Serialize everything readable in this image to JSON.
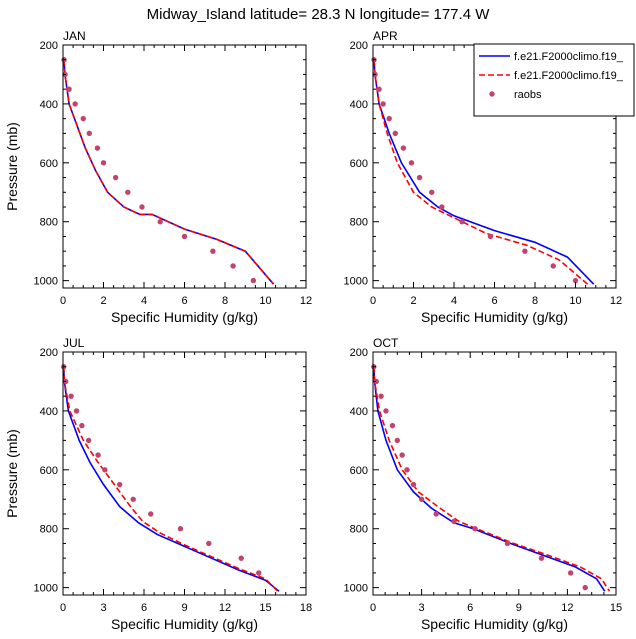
{
  "figure": {
    "title": "Midway_Island  latitude= 28.3 N longitude= 177.4 W"
  },
  "legend": {
    "entries": [
      {
        "label": "f.e21.F2000climo.f19_",
        "style": "solid",
        "color": "#0000ff"
      },
      {
        "label": "f.e21.F2000climo.f19_",
        "style": "dashed",
        "color": "#ff0000"
      },
      {
        "label": "raobs",
        "style": "marker",
        "color": "#c2436e"
      }
    ]
  },
  "chart_data": [
    {
      "type": "line",
      "panel": "JAN",
      "xlabel": "Specific Humidity (g/kg)",
      "ylabel": "Pressure (mb)",
      "xlim": [
        0,
        12
      ],
      "ylim": [
        200,
        1025
      ],
      "y_reversed": true,
      "xticks": [
        0,
        2,
        4,
        6,
        8,
        10,
        12
      ],
      "yticks": [
        200,
        400,
        600,
        800,
        1000
      ],
      "series": [
        {
          "name": "f.e21.F2000climo.f19_",
          "style": "solid",
          "x": [
            0.05,
            0.1,
            0.3,
            0.7,
            1.1,
            1.6,
            2.2,
            3.0,
            3.8,
            4.4,
            6.0,
            7.6,
            9.0,
            10.4
          ],
          "y": [
            250,
            300,
            400,
            475,
            550,
            625,
            700,
            750,
            775,
            775,
            825,
            860,
            900,
            1012
          ]
        },
        {
          "name": "f.e21.F2000climo.f19_",
          "style": "dashed",
          "x": [
            0.05,
            0.1,
            0.3,
            0.7,
            1.1,
            1.6,
            2.2,
            3.0,
            3.8,
            4.4,
            6.0,
            7.6,
            9.0,
            10.4
          ],
          "y": [
            250,
            300,
            400,
            475,
            550,
            625,
            700,
            750,
            775,
            775,
            825,
            860,
            900,
            1012
          ]
        },
        {
          "name": "raobs",
          "style": "marker",
          "x": [
            0.05,
            0.1,
            0.3,
            0.6,
            1.0,
            1.3,
            1.7,
            2.0,
            2.6,
            3.2,
            3.9,
            4.8,
            6.0,
            7.4,
            8.4,
            9.4
          ],
          "y": [
            250,
            300,
            350,
            400,
            450,
            500,
            550,
            600,
            650,
            700,
            750,
            800,
            850,
            900,
            950,
            1000
          ]
        }
      ]
    },
    {
      "type": "line",
      "panel": "APR",
      "xlabel": "Specific Humidity (g/kg)",
      "ylabel": "",
      "xlim": [
        0,
        12
      ],
      "ylim": [
        200,
        1025
      ],
      "y_reversed": true,
      "xticks": [
        0,
        2,
        4,
        6,
        8,
        10,
        12
      ],
      "yticks": [
        200,
        400,
        600,
        800,
        1000
      ],
      "series": [
        {
          "name": "f.e21.F2000climo.f19_",
          "style": "solid",
          "x": [
            0.05,
            0.1,
            0.3,
            0.8,
            1.4,
            2.3,
            3.2,
            4.0,
            6.0,
            8.0,
            9.6,
            10.9
          ],
          "y": [
            250,
            300,
            400,
            500,
            600,
            700,
            750,
            780,
            830,
            870,
            920,
            1012
          ]
        },
        {
          "name": "f.e21.F2000climo.f19_",
          "style": "dashed",
          "x": [
            0.05,
            0.1,
            0.3,
            0.7,
            1.2,
            2.0,
            2.9,
            3.8,
            5.6,
            7.6,
            9.2,
            10.6
          ],
          "y": [
            250,
            300,
            400,
            500,
            600,
            700,
            750,
            780,
            840,
            880,
            930,
            1012
          ]
        },
        {
          "name": "raobs",
          "style": "marker",
          "x": [
            0.05,
            0.1,
            0.3,
            0.5,
            0.8,
            1.1,
            1.5,
            1.9,
            2.3,
            2.9,
            3.4,
            4.4,
            5.8,
            7.5,
            8.9,
            10.0
          ],
          "y": [
            250,
            300,
            350,
            400,
            450,
            500,
            550,
            600,
            650,
            700,
            750,
            800,
            850,
            900,
            950,
            1000
          ]
        }
      ]
    },
    {
      "type": "line",
      "panel": "JUL",
      "xlabel": "Specific Humidity (g/kg)",
      "ylabel": "Pressure (mb)",
      "xlim": [
        0,
        18
      ],
      "ylim": [
        200,
        1025
      ],
      "y_reversed": true,
      "xticks": [
        0,
        3,
        6,
        9,
        12,
        15,
        18
      ],
      "yticks": [
        200,
        400,
        600,
        800,
        1000
      ],
      "series": [
        {
          "name": "f.e21.F2000climo.f19_",
          "style": "solid",
          "x": [
            0.05,
            0.1,
            0.4,
            1.2,
            2.0,
            3.0,
            4.2,
            5.6,
            7.0,
            9.0,
            11.0,
            13.0,
            15.0,
            16.0
          ],
          "y": [
            250,
            300,
            400,
            500,
            575,
            650,
            725,
            780,
            820,
            860,
            900,
            940,
            975,
            1012
          ]
        },
        {
          "name": "f.e21.F2000climo.f19_",
          "style": "dashed",
          "x": [
            0.05,
            0.1,
            0.5,
            1.5,
            2.6,
            3.8,
            5.0,
            5.9,
            7.2,
            9.0,
            11.0,
            13.0,
            15.0,
            15.9
          ],
          "y": [
            250,
            300,
            400,
            500,
            575,
            650,
            725,
            775,
            815,
            855,
            895,
            935,
            970,
            1012
          ]
        },
        {
          "name": "raobs",
          "style": "marker",
          "x": [
            0.05,
            0.2,
            0.6,
            1.0,
            1.4,
            1.9,
            2.6,
            3.1,
            4.2,
            5.2,
            6.5,
            8.7,
            10.8,
            13.2,
            14.5
          ],
          "y": [
            250,
            300,
            350,
            400,
            450,
            500,
            550,
            600,
            650,
            700,
            750,
            800,
            850,
            900,
            950
          ]
        }
      ]
    },
    {
      "type": "line",
      "panel": "OCT",
      "xlabel": "Specific Humidity (g/kg)",
      "ylabel": "",
      "xlim": [
        0,
        15
      ],
      "ylim": [
        200,
        1025
      ],
      "y_reversed": true,
      "xticks": [
        0,
        3,
        6,
        9,
        12,
        15
      ],
      "yticks": [
        200,
        400,
        600,
        800,
        1000
      ],
      "series": [
        {
          "name": "f.e21.F2000climo.f19_",
          "style": "solid",
          "x": [
            0.05,
            0.1,
            0.3,
            0.8,
            1.5,
            2.5,
            3.6,
            5.0,
            6.2,
            8.5,
            10.5,
            12.5,
            13.8,
            14.3
          ],
          "y": [
            250,
            300,
            400,
            500,
            600,
            675,
            730,
            780,
            800,
            850,
            890,
            930,
            970,
            1012
          ]
        },
        {
          "name": "f.e21.F2000climo.f19_",
          "style": "dashed",
          "x": [
            0.05,
            0.1,
            0.4,
            1.0,
            1.8,
            2.8,
            4.0,
            5.3,
            6.4,
            8.7,
            10.8,
            12.8,
            14.1,
            14.6
          ],
          "y": [
            250,
            300,
            400,
            500,
            600,
            675,
            725,
            775,
            800,
            850,
            890,
            930,
            970,
            1012
          ]
        },
        {
          "name": "raobs",
          "style": "marker",
          "x": [
            0.05,
            0.2,
            0.5,
            0.8,
            1.2,
            1.5,
            1.8,
            2.1,
            2.5,
            3.0,
            3.9,
            5.0,
            6.3,
            8.3,
            10.4,
            12.2,
            13.1
          ],
          "y": [
            250,
            300,
            350,
            400,
            450,
            500,
            550,
            600,
            650,
            700,
            750,
            775,
            800,
            850,
            900,
            950,
            1000
          ]
        }
      ]
    }
  ]
}
